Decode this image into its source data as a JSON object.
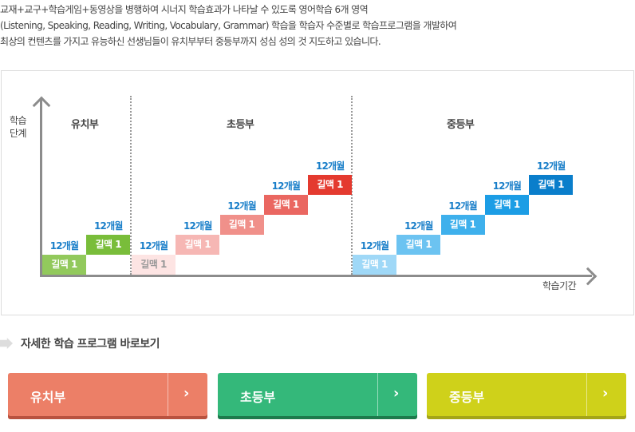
{
  "intro": [
    "교재+교구+학습게임+동영상을 병행하여  시너지 학습효과가 나타날 수 있도록 영어학습 6개 영역",
    "(Listening, Speaking, Reading, Writing, Vocabulary, Grammar) 학습을 학습자 수준별로 학습프로그램을 개발하여",
    "최상의 컨텐츠를 가지고 유능하신 선생님들이 유치부부터 중등부까지 성심 성의 것 지도하고 있습니다."
  ],
  "chart": {
    "y_label": [
      "학습",
      "단계"
    ],
    "x_label": "학습기간",
    "sections": [
      "유치부",
      "초등부",
      "중등부"
    ],
    "duration": "12개월",
    "groups": [
      {
        "steps": [
          {
            "label": "길맥 1",
            "color": "#92c95c",
            "text": "#ffffff"
          },
          {
            "label": "길맥 1",
            "color": "#79bd3a",
            "text": "#ffffff"
          }
        ]
      },
      {
        "steps": [
          {
            "label": "길맥 1",
            "color": "#fde4e3",
            "text": "#999999"
          },
          {
            "label": "길맥 1",
            "color": "#f6b7b4",
            "text": "#ffffff"
          },
          {
            "label": "길맥 1",
            "color": "#f0908a",
            "text": "#ffffff"
          },
          {
            "label": "길맥 1",
            "color": "#ea6761",
            "text": "#ffffff"
          },
          {
            "label": "길맥 1",
            "color": "#e43a2f",
            "text": "#ffffff"
          }
        ]
      },
      {
        "steps": [
          {
            "label": "길맥 1",
            "color": "#9fd8f7",
            "text": "#ffffff"
          },
          {
            "label": "길맥 1",
            "color": "#6cc3f1",
            "text": "#ffffff"
          },
          {
            "label": "길맥 1",
            "color": "#3eb0ec",
            "text": "#ffffff"
          },
          {
            "label": "길맥 1",
            "color": "#1c9de5",
            "text": "#ffffff"
          },
          {
            "label": "길맥 1",
            "color": "#0a7ecb",
            "text": "#ffffff"
          }
        ]
      }
    ]
  },
  "more_title": "자세한 학습 프로그램 바로보기",
  "buttons": [
    {
      "label": "유치부",
      "chevron": "›",
      "color": "#ec7f67",
      "shadow": "#b9523f"
    },
    {
      "label": "초등부",
      "chevron": "›",
      "color": "#34b87a",
      "shadow": "#1d7a4c"
    },
    {
      "label": "중등부",
      "chevron": "›",
      "color": "#cfd11a",
      "shadow": "#a4a518"
    }
  ]
}
